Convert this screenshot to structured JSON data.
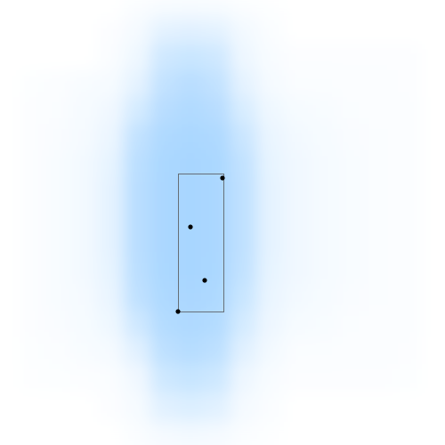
{
  "chart_data": {
    "type": "heatmap",
    "title": "",
    "xlabel": "",
    "ylabel": "",
    "colormap": [
      "#ffffff",
      "#a8d6ff"
    ],
    "grid": false,
    "legend": "none",
    "value_range": [
      0,
      1
    ],
    "x_centers": [
      10,
      35,
      65,
      95,
      125,
      155,
      185,
      215,
      245,
      275,
      305,
      335,
      365,
      395,
      425,
      460,
      490
    ],
    "y_centers": [
      10,
      35,
      65,
      95,
      125,
      155,
      185,
      215,
      245,
      275,
      305,
      335,
      365,
      395,
      425,
      460,
      490
    ],
    "density": [
      [
        0.0,
        0.0,
        0.0,
        0.0,
        0.0,
        0.06,
        0.1,
        0.12,
        0.1,
        0.06,
        0.02,
        0.0,
        0.0,
        0.0,
        0.0,
        0.0,
        0.0
      ],
      [
        0.0,
        0.0,
        0.0,
        0.0,
        0.04,
        0.12,
        0.32,
        0.36,
        0.32,
        0.14,
        0.06,
        0.0,
        0.0,
        0.0,
        0.0,
        0.0,
        0.0
      ],
      [
        0.0,
        0.0,
        0.0,
        0.0,
        0.06,
        0.18,
        0.55,
        0.62,
        0.55,
        0.2,
        0.08,
        0.04,
        0.04,
        0.04,
        0.04,
        0.04,
        0.0
      ],
      [
        0.0,
        0.03,
        0.05,
        0.08,
        0.1,
        0.3,
        0.7,
        0.8,
        0.7,
        0.3,
        0.12,
        0.06,
        0.06,
        0.05,
        0.05,
        0.04,
        0.0
      ],
      [
        0.0,
        0.04,
        0.06,
        0.1,
        0.16,
        0.5,
        0.82,
        0.9,
        0.82,
        0.45,
        0.18,
        0.1,
        0.08,
        0.06,
        0.05,
        0.05,
        0.0
      ],
      [
        0.0,
        0.04,
        0.07,
        0.12,
        0.22,
        0.7,
        0.92,
        0.96,
        0.92,
        0.6,
        0.24,
        0.14,
        0.1,
        0.07,
        0.06,
        0.05,
        0.0
      ],
      [
        0.0,
        0.04,
        0.08,
        0.14,
        0.28,
        0.78,
        0.96,
        1.0,
        0.96,
        0.7,
        0.28,
        0.16,
        0.12,
        0.08,
        0.06,
        0.05,
        0.0
      ],
      [
        0.0,
        0.04,
        0.08,
        0.14,
        0.3,
        0.8,
        0.97,
        1.0,
        0.97,
        0.72,
        0.3,
        0.16,
        0.12,
        0.08,
        0.06,
        0.05,
        0.0
      ],
      [
        0.0,
        0.04,
        0.08,
        0.14,
        0.3,
        0.8,
        0.97,
        1.0,
        0.97,
        0.72,
        0.3,
        0.16,
        0.12,
        0.08,
        0.06,
        0.05,
        0.0
      ],
      [
        0.0,
        0.04,
        0.08,
        0.14,
        0.3,
        0.8,
        0.97,
        1.0,
        0.97,
        0.72,
        0.3,
        0.16,
        0.12,
        0.08,
        0.06,
        0.05,
        0.0
      ],
      [
        0.0,
        0.04,
        0.08,
        0.14,
        0.28,
        0.78,
        0.96,
        1.0,
        0.96,
        0.7,
        0.28,
        0.16,
        0.12,
        0.08,
        0.06,
        0.05,
        0.0
      ],
      [
        0.0,
        0.04,
        0.08,
        0.12,
        0.24,
        0.72,
        0.93,
        0.97,
        0.93,
        0.62,
        0.24,
        0.14,
        0.1,
        0.07,
        0.06,
        0.05,
        0.0
      ],
      [
        0.0,
        0.04,
        0.07,
        0.1,
        0.18,
        0.55,
        0.86,
        0.92,
        0.86,
        0.5,
        0.2,
        0.1,
        0.08,
        0.06,
        0.05,
        0.05,
        0.0
      ],
      [
        0.0,
        0.03,
        0.05,
        0.08,
        0.12,
        0.34,
        0.76,
        0.84,
        0.76,
        0.34,
        0.14,
        0.06,
        0.06,
        0.05,
        0.05,
        0.04,
        0.0
      ],
      [
        0.0,
        0.02,
        0.03,
        0.04,
        0.06,
        0.16,
        0.56,
        0.64,
        0.56,
        0.2,
        0.08,
        0.04,
        0.04,
        0.04,
        0.04,
        0.03,
        0.0
      ],
      [
        0.0,
        0.0,
        0.0,
        0.0,
        0.04,
        0.1,
        0.34,
        0.4,
        0.34,
        0.12,
        0.06,
        0.0,
        0.0,
        0.0,
        0.0,
        0.0,
        0.0
      ],
      [
        0.0,
        0.0,
        0.0,
        0.0,
        0.0,
        0.06,
        0.12,
        0.14,
        0.12,
        0.06,
        0.02,
        0.0,
        0.0,
        0.0,
        0.0,
        0.0,
        0.0
      ]
    ],
    "box": {
      "x_min": 200,
      "x_max": 251,
      "y_min": 195,
      "y_max": 350,
      "stroke": "#555555"
    },
    "points": [
      {
        "x": 250,
        "y": 200
      },
      {
        "x": 214,
        "y": 255
      },
      {
        "x": 230,
        "y": 315
      },
      {
        "x": 200,
        "y": 350
      }
    ],
    "point_color": "#000000"
  }
}
